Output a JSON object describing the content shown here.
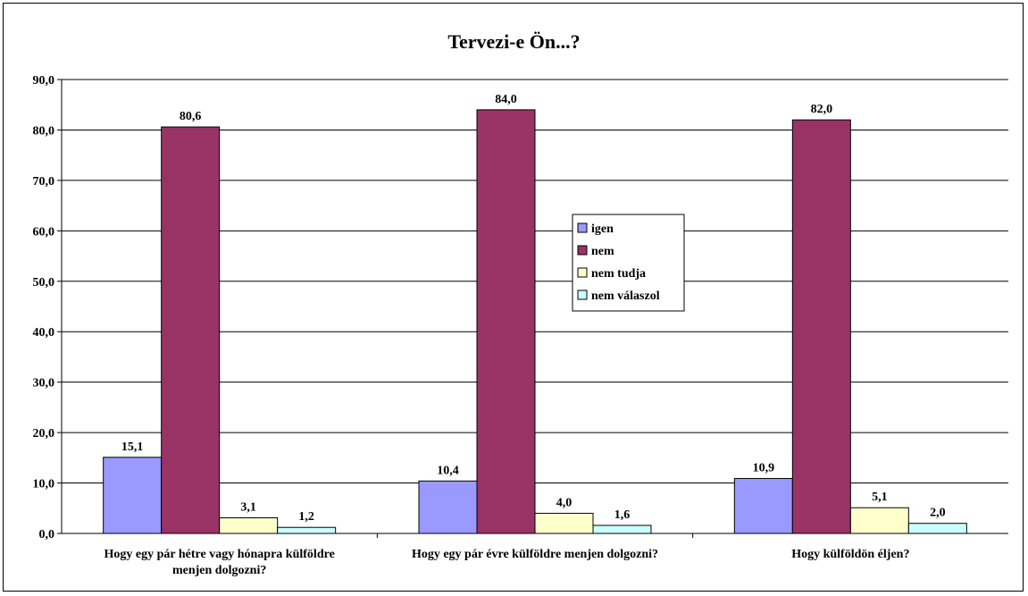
{
  "chart_data": {
    "type": "bar",
    "title": "Tervezi-e Ön...?",
    "categories": [
      [
        "Hogy egy pár hétre vagy hónapra külföldre",
        "menjen dolgozni?"
      ],
      [
        "Hogy egy pár évre külföldre menjen dolgozni?"
      ],
      [
        "Hogy külföldön éljen?"
      ]
    ],
    "series": [
      {
        "name": "igen",
        "color": "#9999ff",
        "values": [
          15.1,
          10.4,
          10.9
        ],
        "labels": [
          "15,1",
          "10,4",
          "10,9"
        ]
      },
      {
        "name": "nem",
        "color": "#993366",
        "values": [
          80.6,
          84.0,
          82.0
        ],
        "labels": [
          "80,6",
          "84,0",
          "82,0"
        ]
      },
      {
        "name": "nem tudja",
        "color": "#ffffcc",
        "values": [
          3.1,
          4.0,
          5.1
        ],
        "labels": [
          "3,1",
          "4,0",
          "5,1"
        ]
      },
      {
        "name": "nem válaszol",
        "color": "#ccffff",
        "values": [
          1.2,
          1.6,
          2.0
        ],
        "labels": [
          "1,2",
          "1,6",
          "2,0"
        ]
      }
    ],
    "ylim": [
      0,
      90
    ],
    "yticks": [
      "0,0",
      "10,0",
      "20,0",
      "30,0",
      "40,0",
      "50,0",
      "60,0",
      "70,0",
      "80,0",
      "90,0"
    ],
    "grid": true,
    "legend_position": "center"
  }
}
